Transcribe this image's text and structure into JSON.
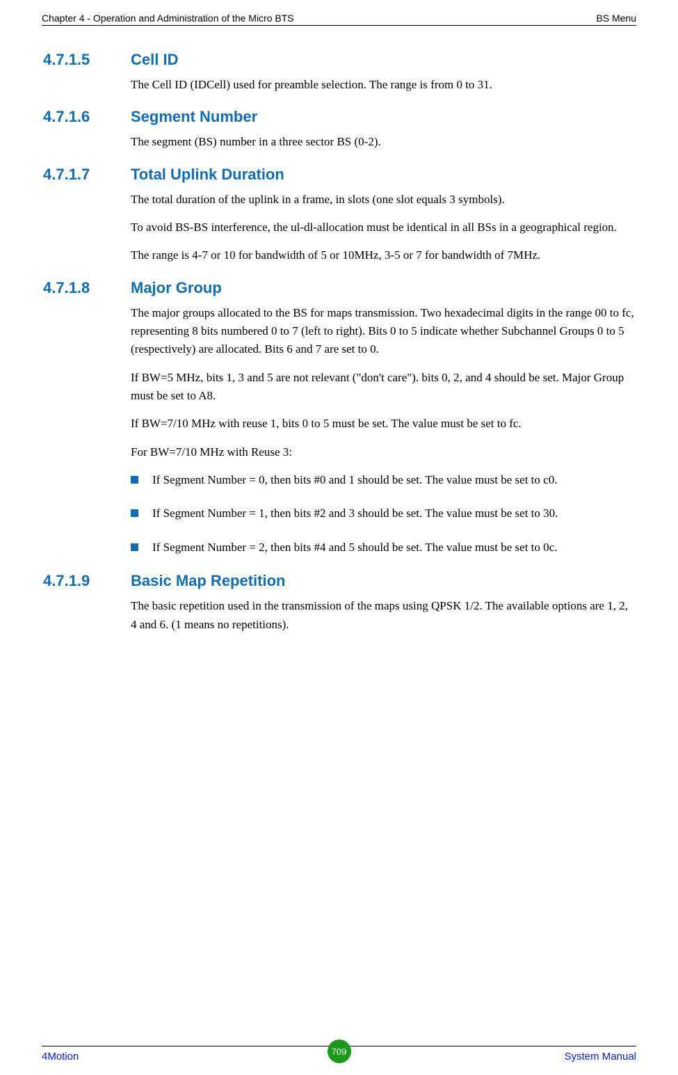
{
  "header": {
    "left": "Chapter 4 - Operation and Administration of the Micro BTS",
    "right": "BS Menu"
  },
  "sections": [
    {
      "num": "4.7.1.5",
      "title": "Cell ID",
      "paras": [
        "The Cell ID (IDCell) used for preamble selection. The range is from 0 to 31."
      ],
      "bullets": []
    },
    {
      "num": "4.7.1.6",
      "title": "Segment Number",
      "paras": [
        "The segment (BS) number in a three sector BS (0-2)."
      ],
      "bullets": []
    },
    {
      "num": "4.7.1.7",
      "title": "Total Uplink Duration",
      "paras": [
        "The total duration of the uplink in a frame, in slots (one slot equals 3 symbols).",
        "To avoid BS-BS interference, the ul-dl-allocation must be identical in all BSs in a geographical region.",
        "The range is 4-7 or 10 for bandwidth of 5 or 10MHz, 3-5 or 7 for bandwidth of 7MHz."
      ],
      "bullets": []
    },
    {
      "num": "4.7.1.8",
      "title": "Major Group",
      "paras": [
        "The major groups allocated to the BS for maps transmission. Two hexadecimal digits in the range 00 to fc, representing 8 bits numbered 0 to 7 (left to right). Bits 0 to 5 indicate whether Subchannel Groups 0 to 5 (respectively) are allocated. Bits 6 and 7 are set to 0.",
        "If BW=5 MHz, bits 1, 3 and 5 are not relevant (\"don't care\"). bits 0, 2, and 4 should be set. Major Group must be set to A8.",
        "If BW=7/10 MHz with reuse 1, bits 0 to 5 must be set. The value must be set to fc.",
        "For BW=7/10 MHz with Reuse 3:"
      ],
      "bullets": [
        "If Segment Number = 0, then bits #0 and 1 should be set. The value must be set to c0.",
        "If Segment Number = 1, then bits #2 and 3 should be set. The value must be set to 30.",
        "If Segment Number = 2, then bits #4 and 5 should be set. The value must be set to 0c."
      ]
    },
    {
      "num": "4.7.1.9",
      "title": "Basic Map Repetition",
      "paras": [
        "The basic repetition used in the transmission of the maps using QPSK 1/2. The available options are 1, 2, 4 and 6. (1 means no repetitions)."
      ],
      "bullets": []
    }
  ],
  "footer": {
    "left": "4Motion",
    "page": "709",
    "right": "System Manual"
  },
  "colors": {
    "heading": "#0f6db5",
    "link": "#0018e0",
    "badge": "#1a9a1a",
    "bullet": "#0f6db5"
  }
}
